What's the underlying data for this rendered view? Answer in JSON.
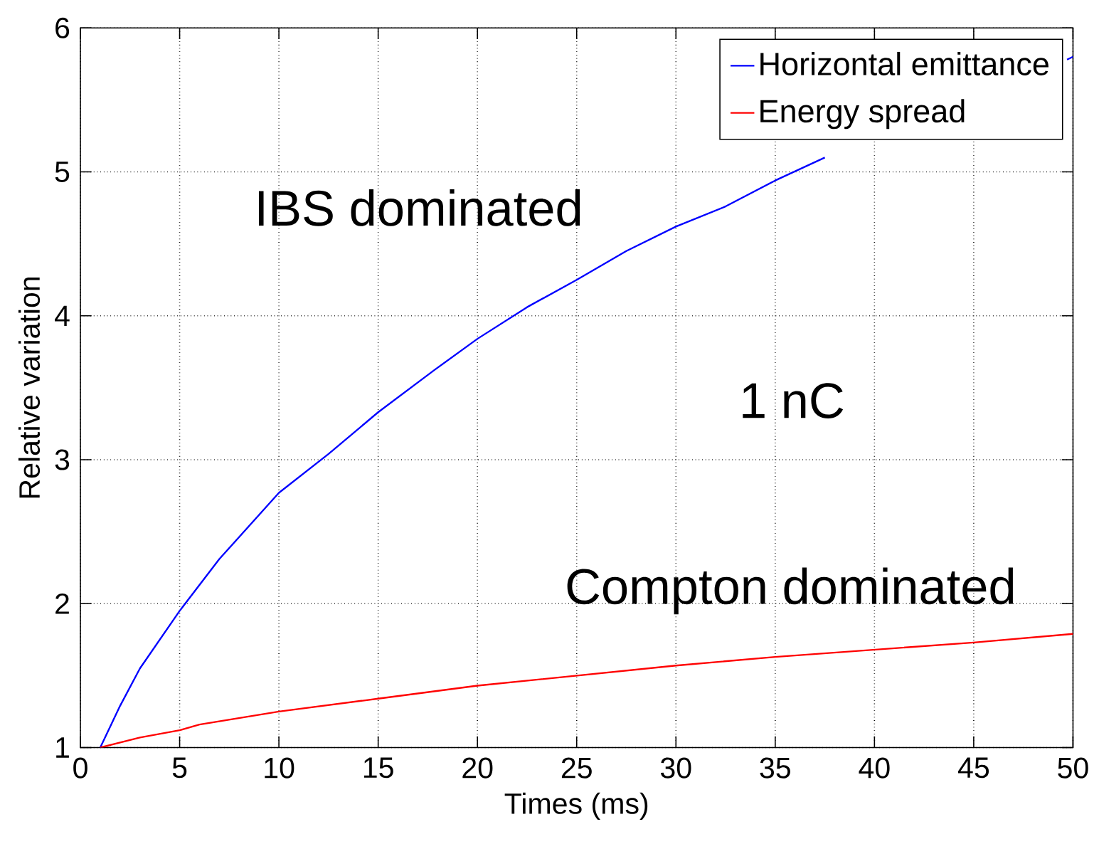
{
  "chart_data": {
    "type": "line",
    "xlabel": "Times (ms)",
    "ylabel": "Relative variation",
    "xlim": [
      0,
      50
    ],
    "ylim": [
      1,
      6
    ],
    "xticks": [
      0,
      5,
      10,
      15,
      20,
      25,
      30,
      35,
      40,
      45,
      50
    ],
    "yticks": [
      1,
      2,
      3,
      4,
      5,
      6
    ],
    "grid": true,
    "legend": "top right",
    "line_style": "solid",
    "series": [
      {
        "name": "Horizontal emittance",
        "color": "#0000ff",
        "x": [
          1,
          2,
          3,
          5,
          7,
          10,
          12.5,
          15,
          17.8,
          20,
          22.5,
          25,
          27.5,
          30,
          32.5,
          35,
          37.5,
          44,
          49.7,
          50
        ],
        "values": [
          1.0,
          1.29,
          1.55,
          1.95,
          2.31,
          2.77,
          3.04,
          3.33,
          3.62,
          3.84,
          4.06,
          4.25,
          4.45,
          4.62,
          4.76,
          4.94,
          5.1,
          null,
          5.78,
          5.8
        ]
      },
      {
        "name": "Energy spread",
        "color": "#ff0000",
        "x": [
          1,
          3,
          5,
          6,
          10,
          15,
          20,
          25,
          30,
          35,
          40,
          45,
          50
        ],
        "values": [
          1.0,
          1.07,
          1.12,
          1.16,
          1.25,
          1.34,
          1.43,
          1.5,
          1.57,
          1.63,
          1.68,
          1.73,
          1.79
        ]
      }
    ],
    "annotations": [
      "IBS dominated",
      "1 nC",
      "Compton dominated"
    ]
  }
}
